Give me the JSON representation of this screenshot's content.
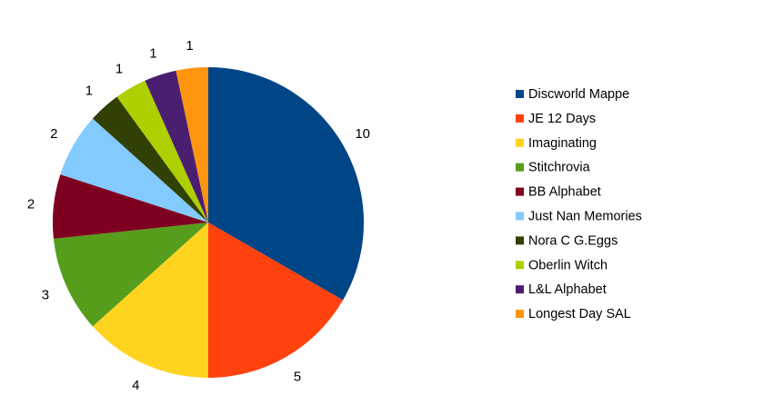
{
  "chart_data": {
    "type": "pie",
    "title": "",
    "categories": [
      "Discworld Mappe",
      "JE 12 Days",
      "Imaginating",
      "Stitchrovia",
      "BB Alphabet",
      "Just Nan Memories",
      "Nora C G.Eggs",
      "Oberlin Witch",
      "L&L Alphabet",
      "Longest Day SAL"
    ],
    "values": [
      10,
      5,
      4,
      3,
      2,
      2,
      1,
      1,
      1,
      1
    ],
    "data_labels": [
      "10",
      "5",
      "4",
      "3",
      "2",
      "2",
      "1",
      "1",
      "1",
      "1"
    ],
    "colors": [
      "#004586",
      "#ff420e",
      "#ffd320",
      "#579d1c",
      "#7e0021",
      "#83caff",
      "#314004",
      "#aecf00",
      "#4b1f6f",
      "#ff950e"
    ],
    "start_angle": "12 o'clock",
    "direction": "clockwise",
    "legend_position": "right"
  }
}
